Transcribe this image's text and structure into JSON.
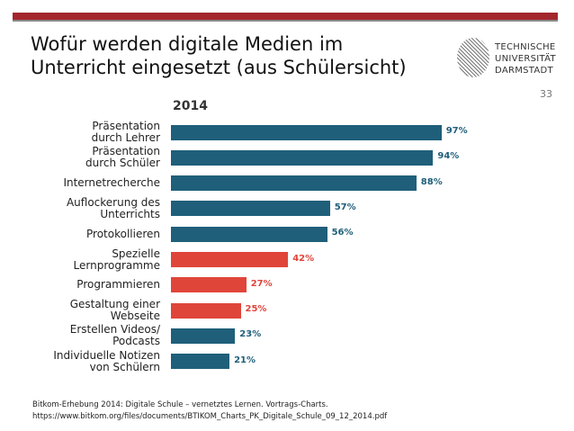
{
  "slide": {
    "title_line1": "Wofür werden digitale Medien im",
    "title_line2": "Unterricht eingesetzt (aus Schülersicht)",
    "page_number": "33",
    "logo": {
      "lines": [
        "TECHNISCHE",
        "UNIVERSITÄT",
        "DARMSTADT"
      ]
    },
    "source_line1": "Bitkom-Erhebung 2014: Digitale Schule – vernetztes Lernen. Vortrags-Charts.",
    "source_line2": "https://www.bitkom.org/files/documents/BTIKOM_Charts_PK_Digitale_Schule_09_12_2014.pdf",
    "accent_color": "#a3262d"
  },
  "chart_data": {
    "type": "bar",
    "orientation": "horizontal",
    "title": "2014",
    "categories": [
      [
        "Präsentation",
        "durch Lehrer"
      ],
      [
        "Präsentation",
        "durch Schüler"
      ],
      [
        "Internetrecherche"
      ],
      [
        "Auflockerung des",
        "Unterrichts"
      ],
      [
        "Protokollieren"
      ],
      [
        "Spezielle",
        "Lernprogramme"
      ],
      [
        "Programmieren"
      ],
      [
        "Gestaltung einer",
        "Webseite"
      ],
      [
        "Erstellen Videos/",
        "Podcasts"
      ],
      [
        "Individuelle Notizen",
        "von Schülern"
      ]
    ],
    "values": [
      97,
      94,
      88,
      57,
      56,
      42,
      27,
      25,
      23,
      21
    ],
    "value_labels": [
      "97%",
      "94%",
      "88%",
      "57%",
      "56%",
      "42%",
      "27%",
      "25%",
      "23%",
      "21%"
    ],
    "bar_colors": [
      "#1f5f7a",
      "#1f5f7a",
      "#1f5f7a",
      "#1f5f7a",
      "#1f5f7a",
      "#e0453a",
      "#e0453a",
      "#e0453a",
      "#1f5f7a",
      "#1f5f7a"
    ],
    "unit": "%",
    "xlim": [
      0,
      100
    ],
    "grid": false,
    "legend": "none"
  }
}
